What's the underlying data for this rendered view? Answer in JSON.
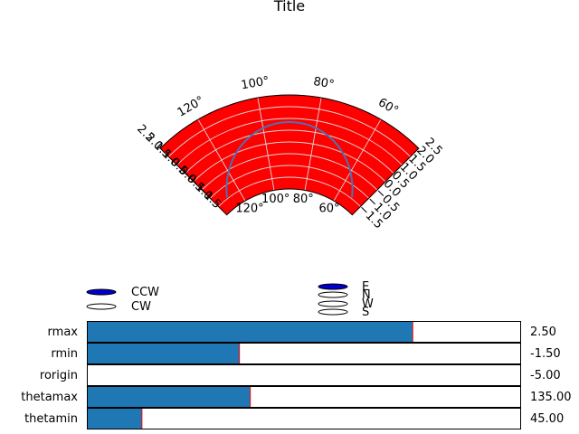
{
  "figure": {
    "title": "Title"
  },
  "polar_plot": {
    "facecolor": "#ff0000",
    "line_color": "#4c72b0",
    "grid_color": "#d9d9d9",
    "theta_ticks": [
      "60°",
      "80°",
      "100°",
      "120°"
    ],
    "radial_ticks": [
      "−1.5",
      "−1.0",
      "−0.5",
      "0.0",
      "0.5",
      "1.0",
      "1.5",
      "2.0",
      "2.5"
    ]
  },
  "direction_radio": {
    "options": [
      {
        "label": "CCW",
        "selected": true
      },
      {
        "label": "CW",
        "selected": false
      }
    ],
    "active_color": "#0000cc"
  },
  "zero_location_radio": {
    "options": [
      {
        "label": "E",
        "selected": true
      },
      {
        "label": "N",
        "selected": false
      },
      {
        "label": "W",
        "selected": false
      },
      {
        "label": "S",
        "selected": false
      }
    ],
    "active_color": "#0000cc"
  },
  "sliders": {
    "fill_color": "#1f77b4",
    "marker_color": "#ff0000",
    "items": [
      {
        "label": "rmax",
        "value": 2.5,
        "min": -5,
        "max": 5,
        "value_text": "2.50"
      },
      {
        "label": "rmin",
        "value": -1.5,
        "min": -5,
        "max": 5,
        "value_text": "-1.50"
      },
      {
        "label": "rorigin",
        "value": -5,
        "min": -5,
        "max": 5,
        "value_text": "-5.00"
      },
      {
        "label": "thetamax",
        "value": 135,
        "min": 0,
        "max": 360,
        "value_text": "135.00"
      },
      {
        "label": "thetamin",
        "value": 45,
        "min": 0,
        "max": 360,
        "value_text": "45.00"
      }
    ]
  }
}
